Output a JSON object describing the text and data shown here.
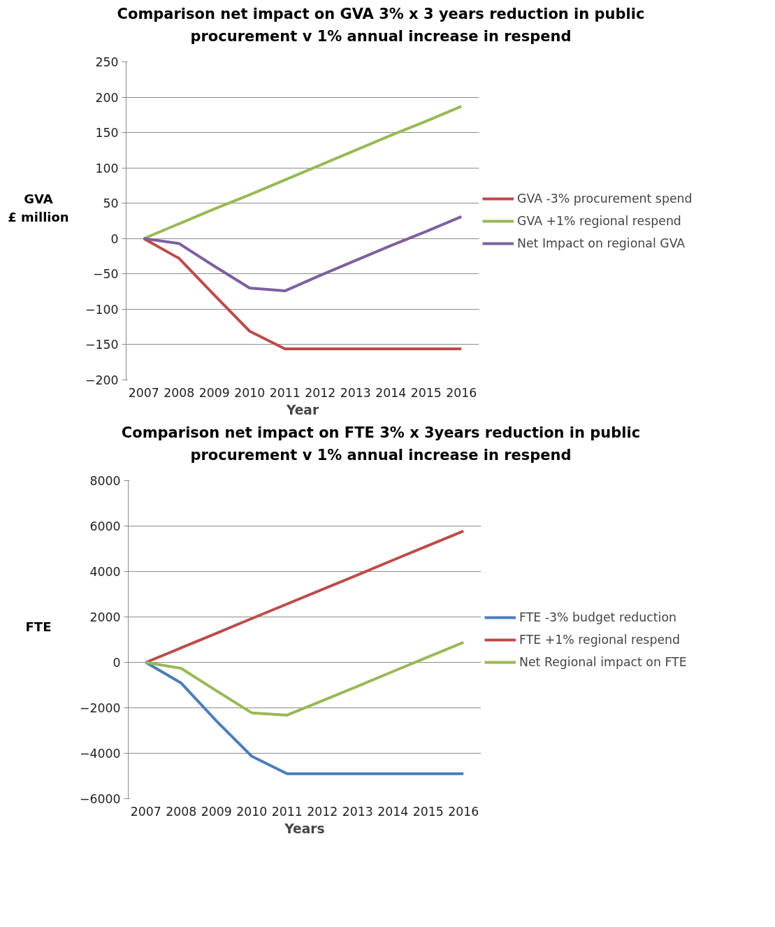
{
  "chart_data": [
    {
      "type": "line",
      "title": "Comparison net impact on GVA 3% x 3 years reduction in public\nprocurement v 1% annual  increase in respend",
      "xlabel": "Year",
      "ylabel": "GVA\n£ million",
      "categories": [
        "2007",
        "2008",
        "2009",
        "2010",
        "2011",
        "2012",
        "2013",
        "2014",
        "2015",
        "2016"
      ],
      "series": [
        {
          "name": "GVA -3% procurement spend",
          "color": "#be4b48",
          "values": [
            0,
            -28,
            -80,
            -131,
            -156,
            -156,
            -156,
            -156,
            -156,
            -156
          ]
        },
        {
          "name": "GVA +1% regional respend",
          "color": "#98b954",
          "values": [
            0,
            21,
            42,
            62,
            83,
            104,
            125,
            146,
            166,
            187
          ]
        },
        {
          "name": "Net Impact on regional GVA",
          "color": "#7d60a0",
          "values": [
            0,
            -7,
            -39,
            -70,
            -74,
            -52,
            -31,
            -10,
            10,
            31
          ]
        }
      ],
      "ylim": [
        -200,
        250
      ],
      "yticks": [
        -200,
        -150,
        -100,
        -50,
        0,
        50,
        100,
        150,
        200,
        250
      ],
      "grid": "y",
      "legend": "right",
      "marker": "none",
      "line_style": "solid"
    },
    {
      "type": "line",
      "title": "Comparison net impact on FTE 3% x 3years reduction in public\nprocurement v 1% annual  increase in respend",
      "xlabel": "Years",
      "ylabel": "FTE",
      "categories": [
        "2007",
        "2008",
        "2009",
        "2010",
        "2011",
        "2012",
        "2013",
        "2014",
        "2015",
        "2016"
      ],
      "series": [
        {
          "name": "FTE -3% budget reduction",
          "color": "#4a7ebb",
          "values": [
            0,
            -910,
            -2580,
            -4130,
            -4900,
            -4900,
            -4900,
            -4900,
            -4900,
            -4900
          ]
        },
        {
          "name": "FTE +1% regional respend",
          "color": "#be4b48",
          "values": [
            0,
            640,
            1280,
            1930,
            2570,
            3210,
            3850,
            4500,
            5140,
            5780
          ]
        },
        {
          "name": "Net Regional impact on FTE",
          "color": "#98b954",
          "values": [
            0,
            -260,
            -1250,
            -2220,
            -2320,
            -1690,
            -1050,
            -400,
            240,
            880
          ]
        }
      ],
      "ylim": [
        -6000,
        8000
      ],
      "yticks": [
        -6000,
        -4000,
        -2000,
        0,
        2000,
        4000,
        6000,
        8000
      ],
      "grid": "y",
      "legend": "right",
      "marker": "none",
      "line_style": "solid"
    }
  ]
}
